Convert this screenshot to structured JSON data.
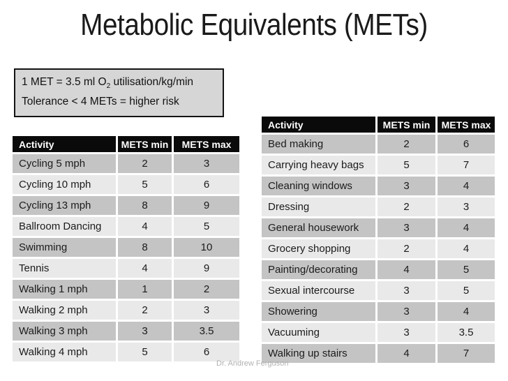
{
  "slide": {
    "title": "Metabolic Equivalents (METs)",
    "watermark": "Dr. Andrew Ferguson"
  },
  "info_box": {
    "line1_prefix": "1 MET = 3.5 ml O",
    "line1_sub": "2",
    "line1_suffix": " utilisation/kg/min",
    "line2": "Tolerance < 4 METs = higher risk"
  },
  "colors": {
    "header_bg": "#0a0a0a",
    "header_text": "#ffffff",
    "row_dark": "#c4c4c4",
    "row_light": "#e9e9e9",
    "info_box_bg": "#d6d6d6",
    "watermark": "#b2b2b2"
  },
  "left_table": {
    "headers": [
      "Activity",
      "METS min",
      "METS max"
    ],
    "rows": [
      [
        "Cycling 5 mph",
        "2",
        "3"
      ],
      [
        "Cycling 10 mph",
        "5",
        "6"
      ],
      [
        "Cycling 13 mph",
        "8",
        "9"
      ],
      [
        "Ballroom Dancing",
        "4",
        "5"
      ],
      [
        "Swimming",
        "8",
        "10"
      ],
      [
        "Tennis",
        "4",
        "9"
      ],
      [
        "Walking 1 mph",
        "1",
        "2"
      ],
      [
        "Walking 2 mph",
        "2",
        "3"
      ],
      [
        "Walking 3 mph",
        "3",
        "3.5"
      ],
      [
        "Walking 4 mph",
        "5",
        "6"
      ]
    ]
  },
  "right_table": {
    "headers": [
      "Activity",
      "METS min",
      "METS max"
    ],
    "rows": [
      [
        "Bed making",
        "2",
        "6"
      ],
      [
        "Carrying heavy bags",
        "5",
        "7"
      ],
      [
        "Cleaning windows",
        "3",
        "4"
      ],
      [
        "Dressing",
        "2",
        "3"
      ],
      [
        "General housework",
        "3",
        "4"
      ],
      [
        "Grocery shopping",
        "2",
        "4"
      ],
      [
        "Painting/decorating",
        "4",
        "5"
      ],
      [
        "Sexual intercourse",
        "3",
        "5"
      ],
      [
        "Showering",
        "3",
        "4"
      ],
      [
        "Vacuuming",
        "3",
        "3.5"
      ],
      [
        "Walking up stairs",
        "4",
        "7"
      ]
    ]
  }
}
